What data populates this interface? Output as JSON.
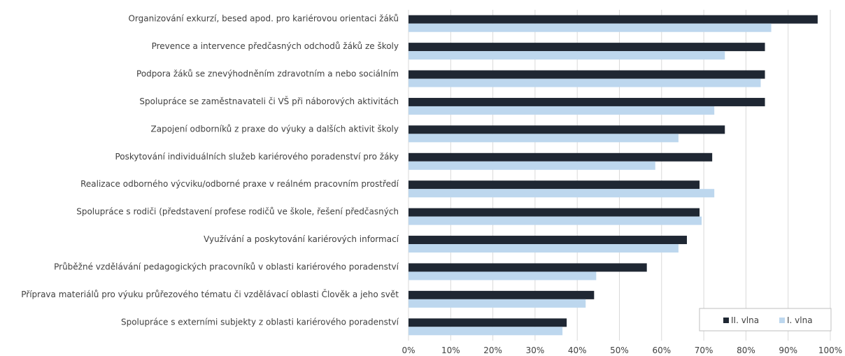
{
  "chart_data": {
    "type": "bar",
    "orientation": "horizontal",
    "categories": [
      "Organizování exkurzí, besed apod. pro kariérovou orientaci žáků",
      "Prevence a intervence předčasných odchodů žáků ze školy",
      "Podpora žáků se znevýhodněním zdravotním a nebo sociálním",
      "Spolupráce se zaměstnavateli či VŠ při náborových aktivitách",
      "Zapojení odborníků z praxe do výuky a dalších aktivit školy",
      "Poskytování individuálních služeb kariérového poradenství pro žáky",
      "Realizace odborného výcviku/odborné praxe v reálném pracovním prostředí",
      "Spolupráce s rodiči (představení profese rodičů ve škole, řešení předčasných",
      "Využívání a poskytování kariérových informací",
      "Průběžné vzdělávání pedagogických pracovníků v oblasti kariérového poradenství",
      "Příprava materiálů pro výuku průřezového tématu či vzdělávací oblasti Člověk a jeho svět",
      "Spolupráce s externími subjekty z oblasti kariérového poradenství"
    ],
    "series": [
      {
        "name": "II. vlna",
        "color": "#1f2733",
        "values": [
          97,
          84.5,
          84.5,
          84.5,
          75,
          72,
          69,
          69,
          66,
          56.5,
          44,
          37.5
        ]
      },
      {
        "name": "I. vlna",
        "color": "#bdd7ee",
        "values": [
          86,
          75,
          83.5,
          72.5,
          64,
          58.5,
          72.5,
          69.5,
          64,
          44.5,
          42,
          36.5
        ]
      }
    ],
    "x_ticks": [
      "0%",
      "10%",
      "20%",
      "30%",
      "40%",
      "50%",
      "60%",
      "70%",
      "80%",
      "90%",
      "100%"
    ],
    "xlim": [
      0,
      100
    ],
    "grid": true,
    "legend_position": "bottom-right",
    "gridline_color": "#d9d9d9"
  }
}
